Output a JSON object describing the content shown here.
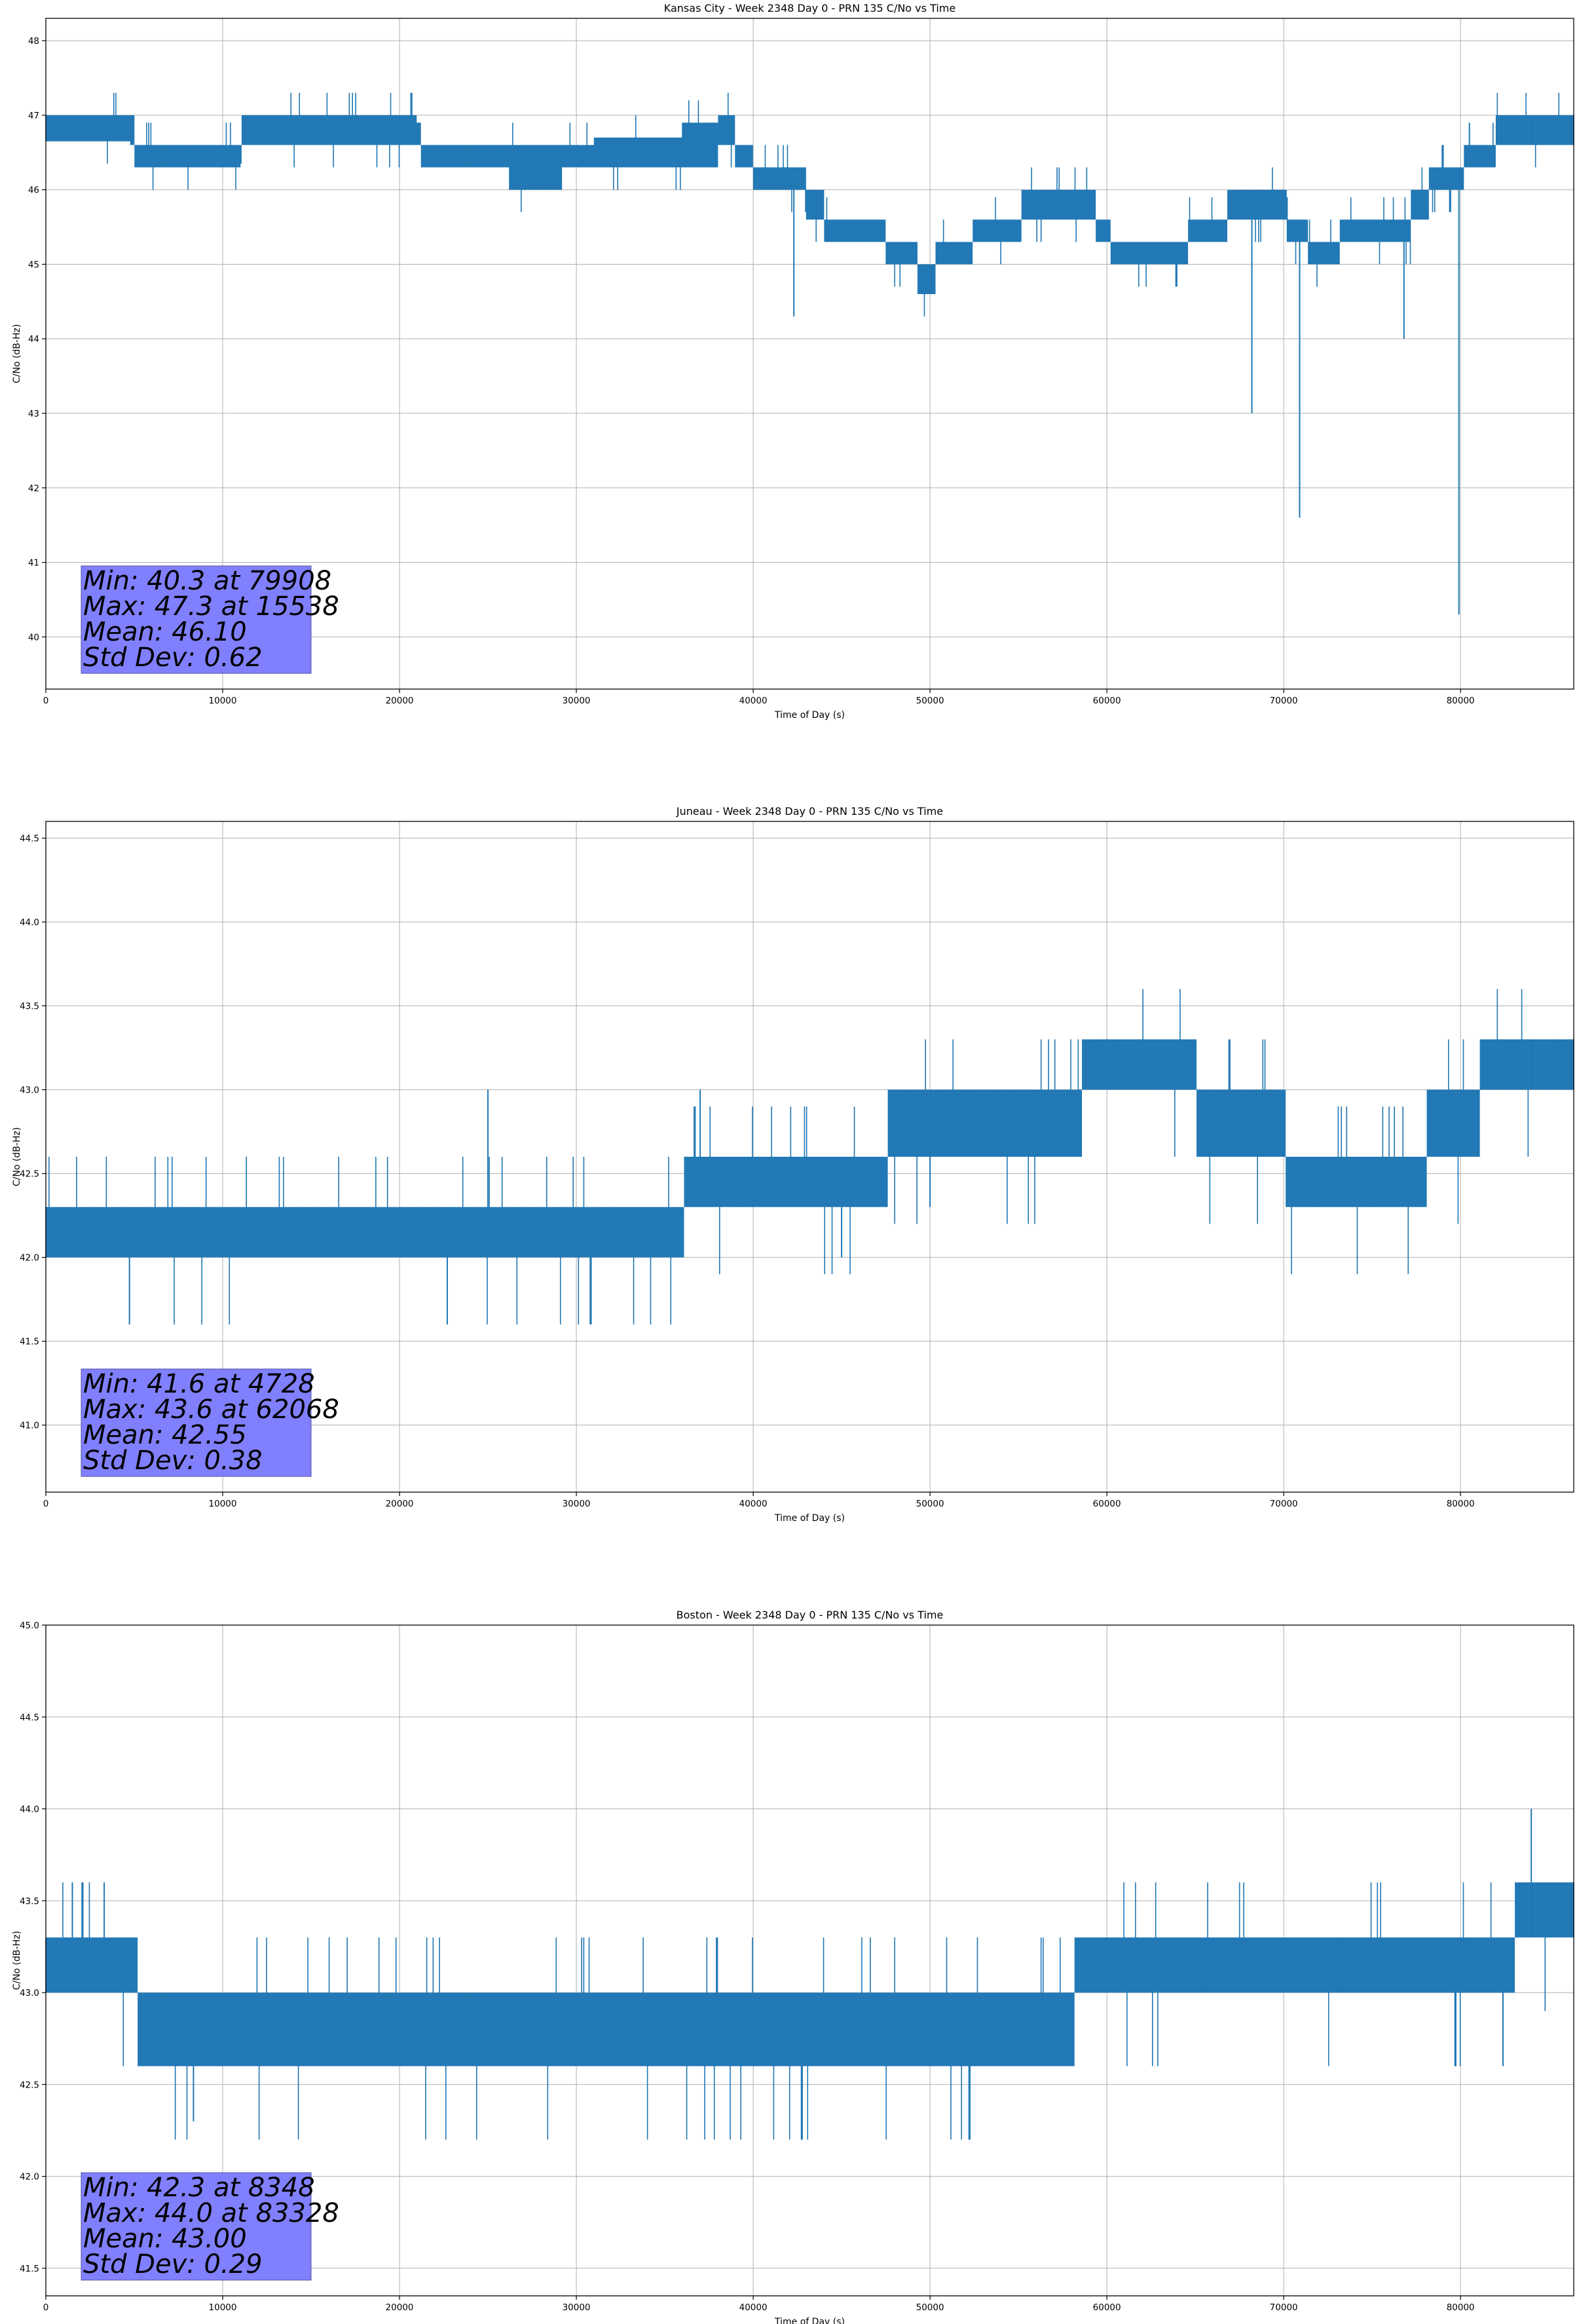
{
  "chart_data": [
    {
      "type": "line",
      "title": "Kansas City - Week 2348 Day 0 - PRN 135 C/No vs Time",
      "xlabel": "Time of Day (s)",
      "ylabel": "C/No (dB-Hz)",
      "xlim": [
        0,
        86400
      ],
      "ylim": [
        39.3,
        48.3
      ],
      "xticks": [
        0,
        10000,
        20000,
        30000,
        40000,
        50000,
        60000,
        70000,
        80000
      ],
      "yticks": [
        40,
        41,
        42,
        43,
        44,
        45,
        46,
        47,
        48
      ],
      "ytick_decimals": 0,
      "grid": true,
      "series_color": "#1f77b4",
      "band_knots": [
        [
          0,
          46.65,
          47.0
        ],
        [
          4800,
          46.6,
          47.0
        ],
        [
          5000,
          46.3,
          46.6
        ],
        [
          10000,
          46.3,
          46.6
        ],
        [
          11000,
          46.35,
          46.6
        ],
        [
          11100,
          46.6,
          47.0
        ],
        [
          21000,
          46.6,
          46.9
        ],
        [
          21200,
          46.3,
          46.6
        ],
        [
          26000,
          46.3,
          46.6
        ],
        [
          26200,
          46.0,
          46.6
        ],
        [
          29000,
          46.0,
          46.6
        ],
        [
          29200,
          46.3,
          46.6
        ],
        [
          31000,
          46.3,
          46.7
        ],
        [
          36000,
          46.3,
          46.9
        ],
        [
          38000,
          46.6,
          47.0
        ],
        [
          38800,
          46.6,
          47.0
        ],
        [
          39000,
          46.3,
          46.6
        ],
        [
          40000,
          46.0,
          46.3
        ],
        [
          42700,
          46.0,
          46.3
        ],
        [
          43000,
          45.6,
          46.0
        ],
        [
          44000,
          45.3,
          45.6
        ],
        [
          47000,
          45.3,
          45.6
        ],
        [
          47500,
          45.0,
          45.3
        ],
        [
          49000,
          45.0,
          45.3
        ],
        [
          49300,
          44.6,
          45.0
        ],
        [
          50000,
          44.6,
          45.0
        ],
        [
          50300,
          45.0,
          45.3
        ],
        [
          52000,
          45.0,
          45.3
        ],
        [
          52400,
          45.3,
          45.6
        ],
        [
          55000,
          45.3,
          45.6
        ],
        [
          55200,
          45.6,
          46.0
        ],
        [
          59200,
          45.6,
          46.0
        ],
        [
          59400,
          45.3,
          45.6
        ],
        [
          60000,
          45.3,
          45.6
        ],
        [
          60200,
          45.0,
          45.3
        ],
        [
          64400,
          45.0,
          45.3
        ],
        [
          64600,
          45.3,
          45.6
        ],
        [
          66600,
          45.3,
          45.6
        ],
        [
          66800,
          45.6,
          46.0
        ],
        [
          70000,
          45.6,
          46.0
        ],
        [
          70200,
          45.3,
          45.6
        ],
        [
          71200,
          45.3,
          45.6
        ],
        [
          71400,
          45.0,
          45.3
        ],
        [
          73000,
          45.0,
          45.3
        ],
        [
          73200,
          45.3,
          45.6
        ],
        [
          77000,
          45.3,
          45.6
        ],
        [
          77200,
          45.6,
          46.0
        ],
        [
          78000,
          45.6,
          46.0
        ],
        [
          78200,
          46.0,
          46.3
        ],
        [
          80000,
          46.0,
          46.3
        ],
        [
          80200,
          46.3,
          46.6
        ],
        [
          81800,
          46.3,
          46.6
        ],
        [
          82000,
          46.6,
          47.0
        ],
        [
          86400,
          46.6,
          47.0
        ]
      ],
      "spikes": [
        [
          42300,
          44.3
        ],
        [
          68200,
          43.0
        ],
        [
          70900,
          41.6
        ],
        [
          76800,
          44.0
        ],
        [
          79908,
          40.3
        ],
        [
          80500,
          46.9
        ]
      ],
      "jitter_up": 0.3,
      "jitter_down": 0.3,
      "stats": {
        "min": "Min: 40.3 at 79908",
        "max": "Max: 47.3 at 15538",
        "mean": "Mean: 46.10",
        "std": "Std Dev: 0.62"
      }
    },
    {
      "type": "line",
      "title": "Juneau - Week 2348 Day 0 - PRN 135 C/No vs Time",
      "xlabel": "Time of Day (s)",
      "ylabel": "C/No (dB-Hz)",
      "xlim": [
        0,
        86400
      ],
      "ylim": [
        40.6,
        44.6
      ],
      "xticks": [
        0,
        10000,
        20000,
        30000,
        40000,
        50000,
        60000,
        70000,
        80000
      ],
      "yticks": [
        41.0,
        41.5,
        42.0,
        42.5,
        43.0,
        43.5,
        44.0,
        44.5
      ],
      "ytick_decimals": 1,
      "grid": true,
      "series_color": "#1f77b4",
      "band_knots": [
        [
          0,
          42.0,
          42.3
        ],
        [
          36000,
          42.0,
          42.3
        ],
        [
          36100,
          42.3,
          42.6
        ],
        [
          47500,
          42.3,
          42.6
        ],
        [
          47600,
          42.6,
          43.0
        ],
        [
          56000,
          42.6,
          43.0
        ],
        [
          57000,
          42.6,
          43.0
        ],
        [
          58500,
          42.6,
          43.0
        ],
        [
          58600,
          43.0,
          43.3
        ],
        [
          65000,
          43.0,
          43.3
        ],
        [
          65100,
          42.6,
          43.0
        ],
        [
          70000,
          42.6,
          43.0
        ],
        [
          70100,
          42.3,
          42.6
        ],
        [
          78000,
          42.3,
          42.6
        ],
        [
          78100,
          42.6,
          43.0
        ],
        [
          81000,
          42.6,
          43.0
        ],
        [
          81100,
          43.0,
          43.3
        ],
        [
          86400,
          43.0,
          43.3
        ]
      ],
      "spikes": [
        [
          4728,
          41.6
        ],
        [
          25000,
          43.0
        ],
        [
          22700,
          41.6
        ],
        [
          37000,
          43.0
        ],
        [
          45000,
          42.0
        ],
        [
          50000,
          42.3
        ]
      ],
      "jitter_up": 0.3,
      "jitter_down": 0.4,
      "stats": {
        "min": "Min: 41.6 at 4728",
        "max": "Max: 43.6 at 62068",
        "mean": "Mean: 42.55",
        "std": "Std Dev: 0.38"
      }
    },
    {
      "type": "line",
      "title": "Boston - Week 2348 Day 0 - PRN 135 C/No vs Time",
      "xlabel": "Time of Day (s)",
      "ylabel": "C/No (dB-Hz)",
      "xlim": [
        0,
        86400
      ],
      "ylim": [
        41.35,
        45.0
      ],
      "xticks": [
        0,
        10000,
        20000,
        30000,
        40000,
        50000,
        60000,
        70000,
        80000
      ],
      "yticks": [
        41.5,
        42.0,
        42.5,
        43.0,
        43.5,
        44.0,
        44.5,
        45.0
      ],
      "ytick_decimals": 1,
      "grid": true,
      "series_color": "#1f77b4",
      "band_knots": [
        [
          0,
          43.0,
          43.3
        ],
        [
          5000,
          43.0,
          43.3
        ],
        [
          5200,
          42.6,
          43.0
        ],
        [
          36000,
          42.6,
          43.0
        ],
        [
          38500,
          42.6,
          43.0
        ],
        [
          38600,
          42.6,
          43.0
        ],
        [
          40000,
          42.6,
          43.0
        ],
        [
          58000,
          42.6,
          43.0
        ],
        [
          58200,
          43.0,
          43.3
        ],
        [
          73000,
          43.0,
          43.3
        ],
        [
          76000,
          43.0,
          43.3
        ],
        [
          83000,
          43.0,
          43.3
        ],
        [
          83100,
          43.3,
          43.6
        ],
        [
          86400,
          43.3,
          43.6
        ]
      ],
      "spikes": [
        [
          8348,
          42.3
        ],
        [
          1500,
          43.6
        ],
        [
          3300,
          43.6
        ],
        [
          79700,
          42.6
        ],
        [
          82400,
          42.6
        ],
        [
          84000,
          44.0
        ]
      ],
      "jitter_up": 0.3,
      "jitter_down": 0.4,
      "stats": {
        "min": "Min: 42.3 at 8348",
        "max": "Max: 44.0 at 83328",
        "mean": "Mean: 43.00",
        "std": "Std Dev: 0.29"
      }
    }
  ]
}
